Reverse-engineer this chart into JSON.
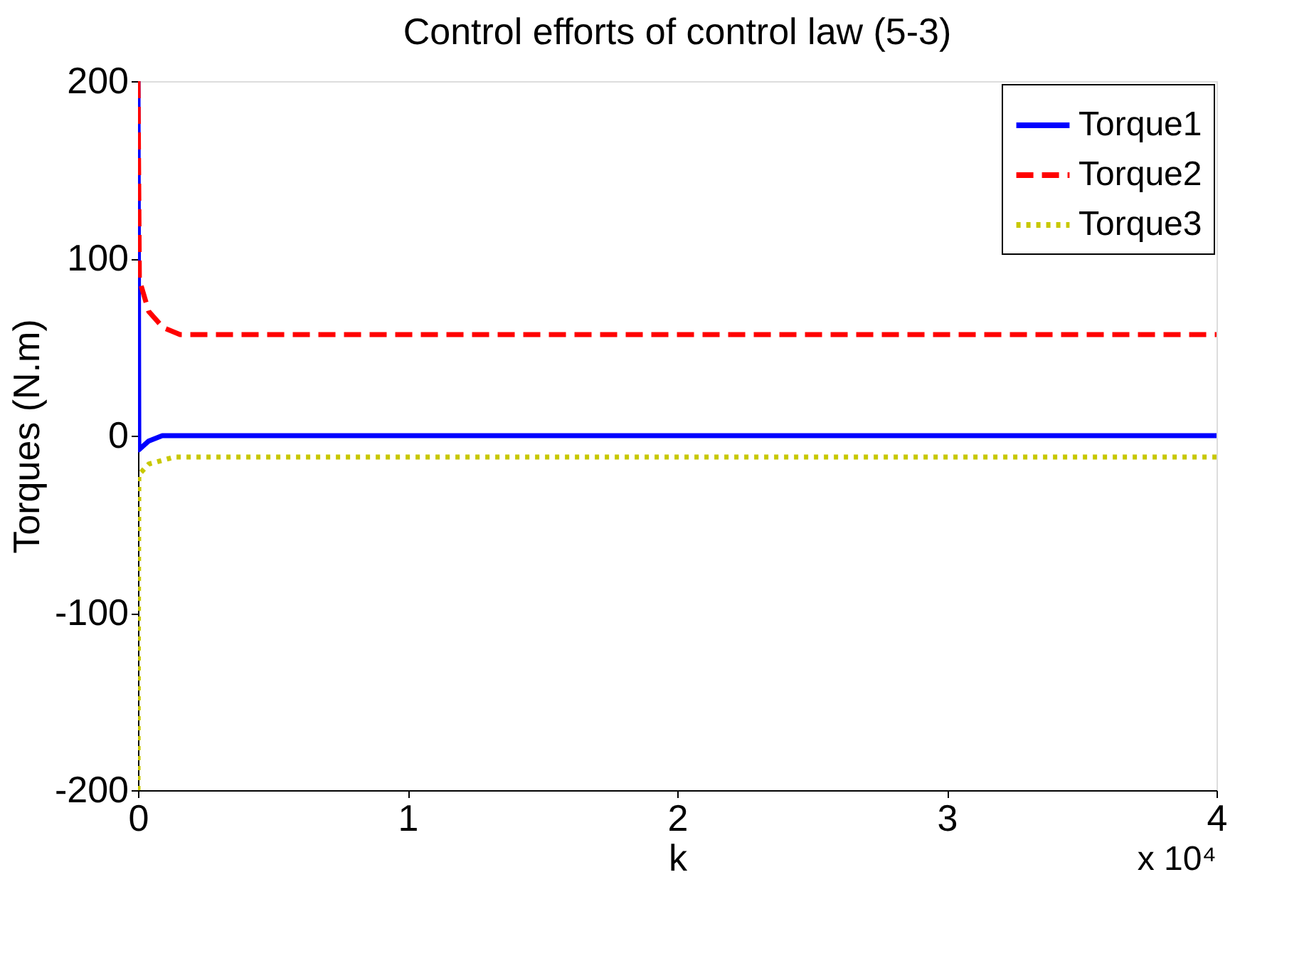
{
  "chart_data": {
    "type": "line",
    "title": "Control efforts of control law (5-3)",
    "xlabel": "k",
    "ylabel": "Torques (N.m)",
    "xlim": [
      0,
      4
    ],
    "xticks": [
      0,
      1,
      2,
      3,
      4
    ],
    "ylim": [
      -200,
      200
    ],
    "yticks": [
      -200,
      -100,
      0,
      100,
      200
    ],
    "annotations": [
      "x 10⁴"
    ],
    "grid": false,
    "legend": "top right",
    "marker": "none",
    "series": [
      {
        "name": "Torque1",
        "color": "#0000ff",
        "line_style": "solid",
        "x": [
          0,
          0.003,
          0.04,
          0.09,
          4
        ],
        "values": [
          200,
          -8,
          -3,
          0,
          0
        ]
      },
      {
        "name": "Torque2",
        "color": "#ff0000",
        "line_style": "dashed",
        "x": [
          0,
          0.005,
          0.04,
          0.093,
          0.156,
          0.25,
          4
        ],
        "values": [
          200,
          88,
          70,
          61,
          57,
          57,
          57
        ]
      },
      {
        "name": "Torque3",
        "color": "#c8c800",
        "line_style": "dotted",
        "x": [
          0,
          0.003,
          0.04,
          0.137,
          0.25,
          4
        ],
        "values": [
          -200,
          -22,
          -16,
          -12,
          -12,
          -12
        ]
      }
    ]
  }
}
